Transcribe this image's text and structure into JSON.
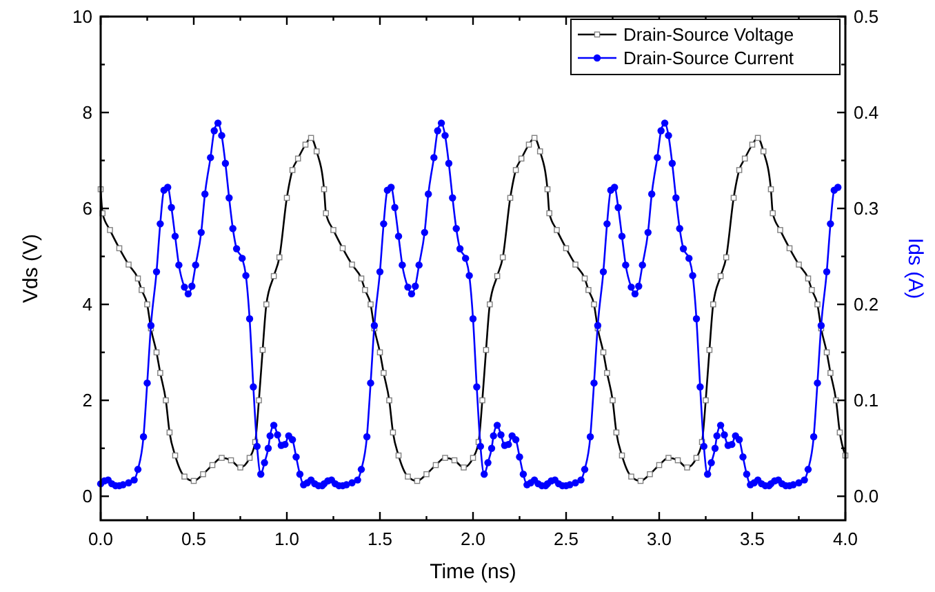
{
  "chart_data": {
    "type": "line",
    "xlabel": "Time (ns)",
    "ylabel": "Vds (V)",
    "y2label": "Ids (A)",
    "xlim": [
      0,
      4
    ],
    "xticks": [
      {
        "value": 0,
        "label": "0.0"
      },
      {
        "value": 0.25,
        "label": null
      },
      0.5,
      {
        "value": 0.75,
        "label": null
      },
      {
        "value": 1,
        "label": "1.0"
      },
      {
        "value": 1.25,
        "label": null
      },
      1.5,
      {
        "value": 1.75,
        "label": null
      },
      {
        "value": 2,
        "label": "2.0"
      },
      {
        "value": 2.25,
        "label": null
      },
      2.5,
      {
        "value": 2.75,
        "label": null
      },
      {
        "value": 3,
        "label": "3.0"
      },
      {
        "value": 3.25,
        "label": null
      },
      3.5,
      {
        "value": 3.75,
        "label": null
      },
      {
        "value": 4,
        "label": "4.0"
      }
    ],
    "ylim": [
      -0.5,
      10
    ],
    "yticks": [
      0,
      {
        "value": 1,
        "label": null
      },
      2,
      {
        "value": 3,
        "label": null
      },
      4,
      {
        "value": 5,
        "label": null
      },
      6,
      {
        "value": 7,
        "label": null
      },
      8,
      {
        "value": 9,
        "label": null
      },
      10
    ],
    "y2lim": [
      -0.025,
      0.5
    ],
    "y2ticks": [
      {
        "value": 0,
        "label": "0.0"
      },
      {
        "value": 0.05,
        "label": null
      },
      0.1,
      {
        "value": 0.15,
        "label": null
      },
      0.2,
      {
        "value": 0.25,
        "label": null
      },
      0.3,
      {
        "value": 0.35,
        "label": null
      },
      0.4,
      {
        "value": 0.45,
        "label": null
      },
      0.5
    ],
    "grid": false,
    "legend": "top right",
    "line_style": "solid",
    "series": [
      {
        "name": "Drain-Source Voltage",
        "color": "#000000",
        "marker": "square",
        "x": [
          0,
          0.01,
          0.05,
          0.1,
          0.15,
          0.2,
          0.22,
          0.25,
          0.27,
          0.3,
          0.32,
          0.35,
          0.37,
          0.4,
          0.45,
          0.5,
          0.55,
          0.6,
          0.65,
          0.7,
          0.75,
          0.8,
          0.83,
          0.85,
          0.87,
          0.89,
          0.93,
          0.96,
          1.0,
          1.03,
          1.06,
          1.1,
          1.13,
          1.16,
          1.2,
          1.21,
          1.25,
          1.3,
          1.35,
          1.4,
          1.42,
          1.45,
          1.47,
          1.5,
          1.52,
          1.55,
          1.57,
          1.6,
          1.65,
          1.7,
          1.75,
          1.8,
          1.85,
          1.9,
          1.95,
          2.0,
          2.03,
          2.05,
          2.07,
          2.09,
          2.13,
          2.16,
          2.2,
          2.23,
          2.26,
          2.3,
          2.33,
          2.36,
          2.4,
          2.41,
          2.45,
          2.5,
          2.55,
          2.6,
          2.62,
          2.65,
          2.67,
          2.7,
          2.72,
          2.75,
          2.77,
          2.8,
          2.85,
          2.9,
          2.95,
          3.0,
          3.05,
          3.1,
          3.15,
          3.2,
          3.23,
          3.25,
          3.27,
          3.29,
          3.33,
          3.36,
          3.4,
          3.43,
          3.46,
          3.5,
          3.53,
          3.56,
          3.6,
          3.61,
          3.65,
          3.7,
          3.75,
          3.8,
          3.82,
          3.85,
          3.87,
          3.9,
          3.92,
          3.95,
          3.97,
          4.0
        ],
        "values": [
          6.4,
          5.9,
          5.55,
          5.17,
          4.83,
          4.54,
          4.3,
          4.0,
          3.5,
          3.0,
          2.57,
          2.0,
          1.33,
          0.85,
          0.41,
          0.32,
          0.46,
          0.65,
          0.8,
          0.75,
          0.6,
          0.8,
          1.13,
          2.0,
          3.05,
          4.0,
          4.59,
          4.98,
          6.22,
          6.8,
          7.04,
          7.33,
          7.47,
          7.19,
          6.4,
          5.9,
          5.55,
          5.17,
          4.83,
          4.54,
          4.3,
          4.0,
          3.5,
          3.0,
          2.57,
          2.0,
          1.33,
          0.85,
          0.41,
          0.32,
          0.46,
          0.65,
          0.8,
          0.75,
          0.6,
          0.8,
          1.13,
          2.0,
          3.05,
          4.0,
          4.59,
          4.98,
          6.22,
          6.8,
          7.04,
          7.33,
          7.47,
          7.19,
          6.4,
          5.9,
          5.55,
          5.17,
          4.83,
          4.54,
          4.3,
          4.0,
          3.5,
          3.0,
          2.57,
          2.0,
          1.33,
          0.85,
          0.41,
          0.32,
          0.46,
          0.65,
          0.8,
          0.75,
          0.6,
          0.8,
          1.13,
          2.0,
          3.05,
          4.0,
          4.59,
          4.98,
          6.22,
          6.8,
          7.04,
          7.33,
          7.47,
          7.19,
          6.4,
          5.9,
          5.55,
          5.17,
          4.83,
          4.54,
          4.3,
          4.0,
          3.5,
          3.0,
          2.57,
          2.0,
          1.33,
          0.85
        ]
      },
      {
        "name": "Drain-Source Current",
        "color": "#0000ff",
        "marker": "circle",
        "axis": "y2",
        "x": [
          0,
          0.02,
          0.04,
          0.06,
          0.08,
          0.1,
          0.12,
          0.15,
          0.18,
          0.2,
          0.23,
          0.25,
          0.27,
          0.3,
          0.32,
          0.34,
          0.36,
          0.38,
          0.4,
          0.42,
          0.45,
          0.47,
          0.49,
          0.51,
          0.54,
          0.56,
          0.59,
          0.61,
          0.63,
          0.65,
          0.67,
          0.69,
          0.71,
          0.73,
          0.76,
          0.78,
          0.8,
          0.82,
          0.84,
          0.86,
          0.88,
          0.9,
          0.91,
          0.93,
          0.95,
          0.97,
          0.99,
          1.01,
          1.03,
          1.05,
          1.07,
          1.09,
          1.11,
          1.13,
          1.15,
          1.17,
          1.19,
          1.2,
          1.22,
          1.24,
          1.26,
          1.28,
          1.3,
          1.32,
          1.35,
          1.38,
          1.4,
          1.43,
          1.45,
          1.47,
          1.5,
          1.52,
          1.54,
          1.56,
          1.58,
          1.6,
          1.62,
          1.65,
          1.67,
          1.69,
          1.71,
          1.74,
          1.76,
          1.79,
          1.81,
          1.83,
          1.85,
          1.87,
          1.89,
          1.91,
          1.93,
          1.96,
          1.98,
          2.0,
          2.02,
          2.04,
          2.06,
          2.08,
          2.1,
          2.11,
          2.13,
          2.15,
          2.17,
          2.19,
          2.21,
          2.23,
          2.25,
          2.27,
          2.29,
          2.31,
          2.33,
          2.35,
          2.37,
          2.39,
          2.4,
          2.42,
          2.44,
          2.46,
          2.48,
          2.5,
          2.52,
          2.55,
          2.58,
          2.6,
          2.63,
          2.65,
          2.67,
          2.7,
          2.72,
          2.74,
          2.76,
          2.78,
          2.8,
          2.82,
          2.85,
          2.87,
          2.89,
          2.91,
          2.94,
          2.96,
          2.99,
          3.01,
          3.03,
          3.05,
          3.07,
          3.09,
          3.11,
          3.13,
          3.16,
          3.18,
          3.2,
          3.22,
          3.24,
          3.26,
          3.28,
          3.3,
          3.31,
          3.33,
          3.35,
          3.37,
          3.39,
          3.41,
          3.43,
          3.45,
          3.47,
          3.49,
          3.51,
          3.53,
          3.55,
          3.57,
          3.59,
          3.6,
          3.62,
          3.64,
          3.66,
          3.68,
          3.7,
          3.72,
          3.75,
          3.78,
          3.8,
          3.83,
          3.85,
          3.87,
          3.9,
          3.92,
          3.94,
          3.96
        ],
        "values": [
          0.013,
          0.016,
          0.017,
          0.013,
          0.011,
          0.011,
          0.012,
          0.014,
          0.017,
          0.028,
          0.062,
          0.118,
          0.178,
          0.234,
          0.284,
          0.319,
          0.322,
          0.301,
          0.271,
          0.241,
          0.218,
          0.211,
          0.219,
          0.241,
          0.275,
          0.315,
          0.353,
          0.381,
          0.389,
          0.376,
          0.347,
          0.311,
          0.279,
          0.258,
          0.248,
          0.23,
          0.185,
          0.114,
          0.052,
          0.023,
          0.035,
          0.05,
          0.063,
          0.074,
          0.064,
          0.053,
          0.054,
          0.063,
          0.059,
          0.041,
          0.023,
          0.012,
          0.014,
          0.017,
          0.013,
          0.011,
          0.011,
          0.013,
          0.016,
          0.017,
          0.013,
          0.011,
          0.011,
          0.012,
          0.014,
          0.017,
          0.028,
          0.062,
          0.118,
          0.178,
          0.234,
          0.284,
          0.319,
          0.322,
          0.301,
          0.271,
          0.241,
          0.218,
          0.211,
          0.219,
          0.241,
          0.275,
          0.315,
          0.353,
          0.381,
          0.389,
          0.376,
          0.347,
          0.311,
          0.279,
          0.258,
          0.248,
          0.23,
          0.185,
          0.114,
          0.052,
          0.023,
          0.035,
          0.05,
          0.063,
          0.074,
          0.064,
          0.053,
          0.054,
          0.063,
          0.059,
          0.041,
          0.023,
          0.012,
          0.014,
          0.017,
          0.013,
          0.011,
          0.011,
          0.013,
          0.016,
          0.017,
          0.013,
          0.011,
          0.011,
          0.012,
          0.014,
          0.017,
          0.028,
          0.062,
          0.118,
          0.178,
          0.234,
          0.284,
          0.319,
          0.322,
          0.301,
          0.271,
          0.241,
          0.218,
          0.211,
          0.219,
          0.241,
          0.275,
          0.315,
          0.353,
          0.381,
          0.389,
          0.376,
          0.347,
          0.311,
          0.279,
          0.258,
          0.248,
          0.23,
          0.185,
          0.114,
          0.052,
          0.023,
          0.035,
          0.05,
          0.063,
          0.074,
          0.064,
          0.053,
          0.054,
          0.063,
          0.059,
          0.041,
          0.023,
          0.012,
          0.014,
          0.017,
          0.013,
          0.011,
          0.011,
          0.013,
          0.016,
          0.017,
          0.013,
          0.011,
          0.011,
          0.012,
          0.014,
          0.017,
          0.028,
          0.062,
          0.118,
          0.178,
          0.234,
          0.284,
          0.319,
          0.322
        ]
      }
    ]
  }
}
